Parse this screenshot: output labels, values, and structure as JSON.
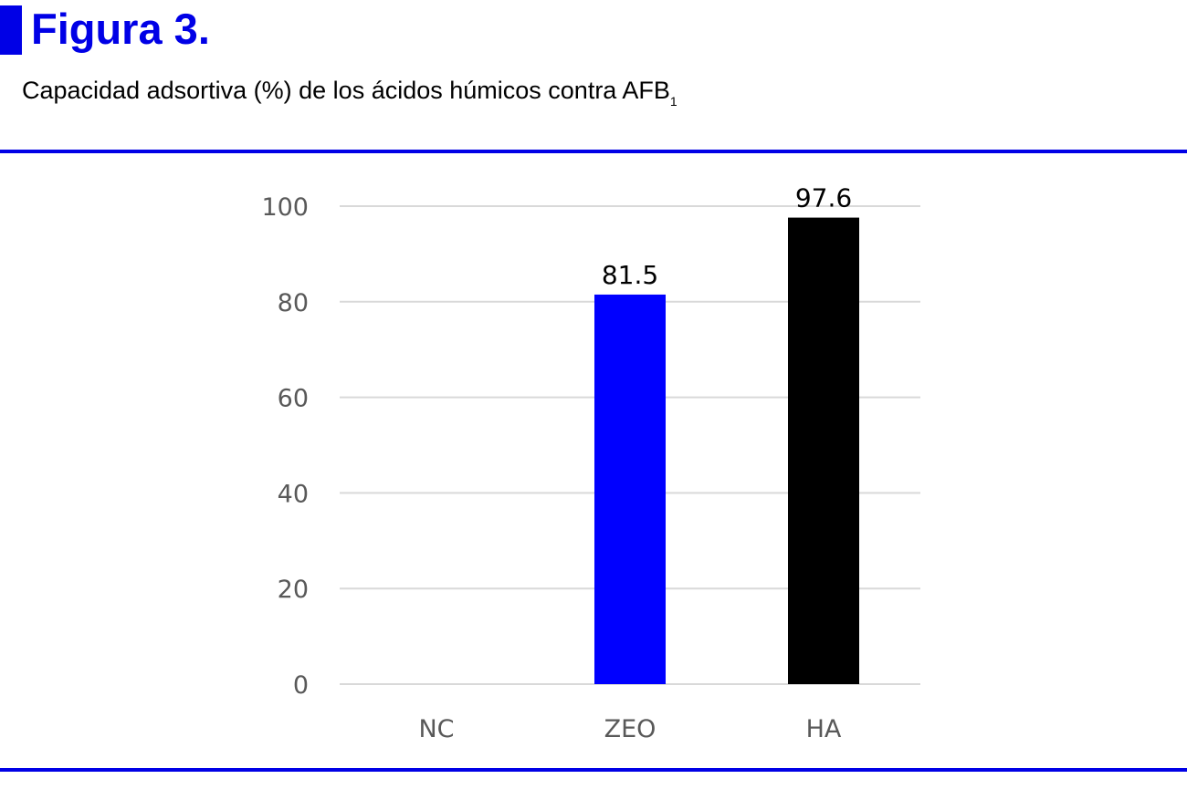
{
  "figure": {
    "label": "Figura 3.",
    "caption_main": "Capacidad adsortiva (%) de los ácidos húmicos contra AFB",
    "caption_subscript": "1",
    "accent_color": "#0000e6"
  },
  "chart_data": {
    "type": "bar",
    "categories": [
      "NC",
      "ZEO",
      "HA"
    ],
    "values": [
      0,
      81.5,
      97.6
    ],
    "data_labels": [
      "",
      "81.5",
      "97.6"
    ],
    "bar_colors": [
      "#0000ff",
      "#0000ff",
      "#000000"
    ],
    "title": "",
    "xlabel": "",
    "ylabel": "",
    "ylim": [
      0,
      100
    ],
    "yticks": [
      0,
      20,
      40,
      60,
      80,
      100
    ],
    "grid": true,
    "legend": "none"
  }
}
